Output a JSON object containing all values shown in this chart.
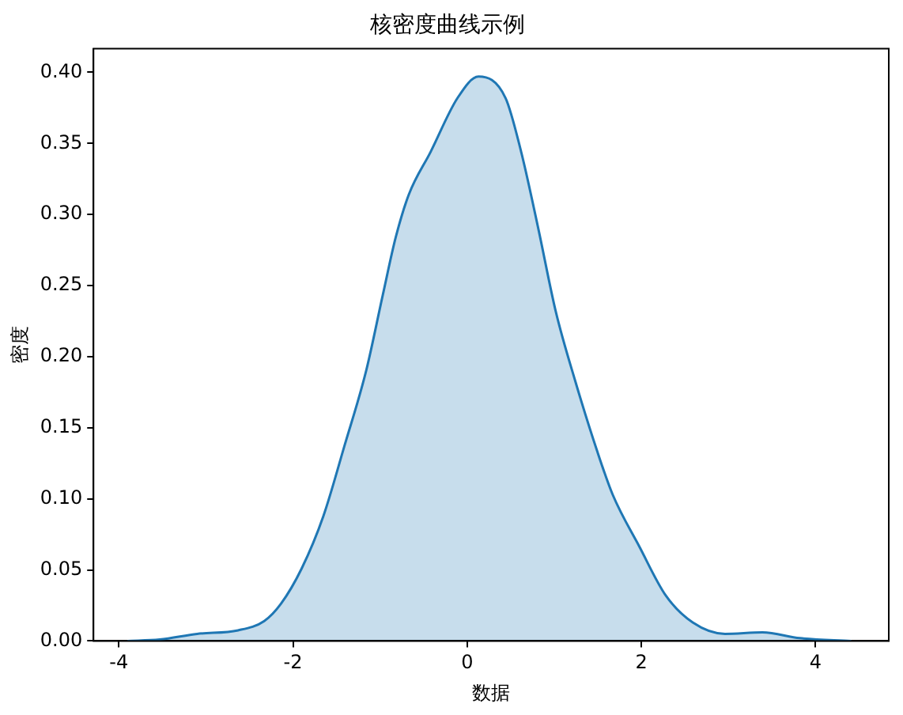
{
  "chart_data": {
    "type": "area",
    "title": "核密度曲线示例",
    "xlabel": "数据",
    "ylabel": "密度",
    "x": [
      -3.9,
      -3.53,
      -3.1,
      -2.63,
      -2.33,
      -2.14,
      -1.9,
      -1.65,
      -1.41,
      -1.16,
      -0.97,
      -0.82,
      -0.67,
      -0.42,
      -0.11,
      0.13,
      0.44,
      0.62,
      0.81,
      1.02,
      1.24,
      1.49,
      1.67,
      1.98,
      2.28,
      2.59,
      2.96,
      3.39,
      3.82,
      4.41
    ],
    "series": [
      {
        "color": "#1f77b4",
        "values": [
          0.0,
          0.001,
          0.005,
          0.0075,
          0.014,
          0.026,
          0.051,
          0.088,
          0.137,
          0.19,
          0.243,
          0.284,
          0.314,
          0.344,
          0.382,
          0.397,
          0.382,
          0.344,
          0.292,
          0.231,
          0.183,
          0.134,
          0.103,
          0.066,
          0.032,
          0.013,
          0.005,
          0.006,
          0.002,
          0.0
        ]
      }
    ],
    "xlim": [
      -4.29,
      4.84
    ],
    "ylim": [
      0,
      0.4166
    ],
    "xticks": [
      -4,
      -2,
      0,
      2,
      4
    ],
    "yticks": [
      {
        "value": 0,
        "label": "0.00"
      },
      {
        "value": 0.05,
        "label": "0.05"
      },
      {
        "value": 0.1,
        "label": "0.10"
      },
      {
        "value": 0.15,
        "label": "0.15"
      },
      {
        "value": 0.2,
        "label": "0.20"
      },
      {
        "value": 0.25,
        "label": "0.25"
      },
      {
        "value": 0.3,
        "label": "0.30"
      },
      {
        "value": 0.35,
        "label": "0.35"
      },
      {
        "value": 0.4,
        "label": "0.40"
      }
    ]
  }
}
